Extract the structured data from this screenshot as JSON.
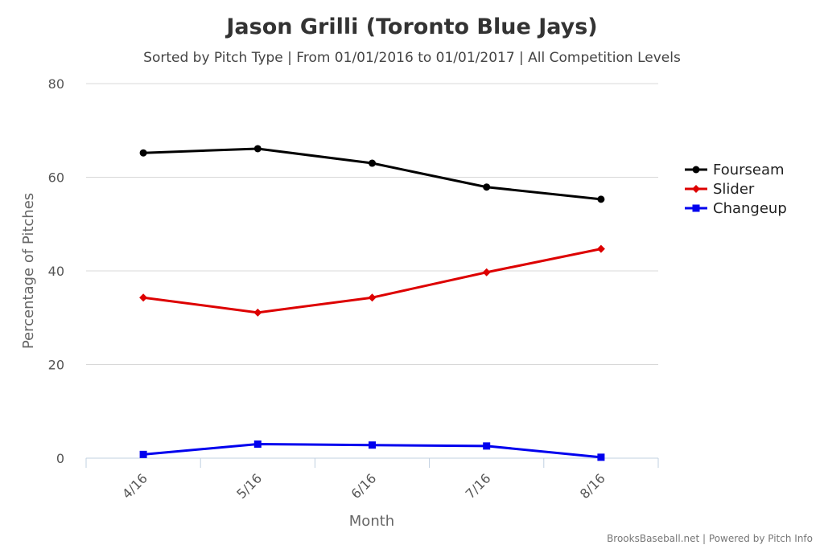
{
  "chart_data": {
    "type": "line",
    "title": "Jason Grilli (Toronto Blue Jays)",
    "subtitle": "Sorted by Pitch Type | From 01/01/2016 to 01/01/2017 | All Competition Levels",
    "xlabel": "Month",
    "ylabel": "Percentage of Pitches",
    "categories": [
      "4/16",
      "5/16",
      "6/16",
      "7/16",
      "8/16"
    ],
    "ylim": [
      0,
      80
    ],
    "yticks": [
      0,
      20,
      40,
      60,
      80
    ],
    "grid": true,
    "legend_position": "right",
    "series": [
      {
        "name": "Fourseam",
        "color": "#000000",
        "marker": "circle",
        "values": [
          65.2,
          66.1,
          63.0,
          57.9,
          55.3
        ]
      },
      {
        "name": "Slider",
        "color": "#dd0000",
        "marker": "diamond",
        "values": [
          34.3,
          31.1,
          34.3,
          39.7,
          44.7
        ]
      },
      {
        "name": "Changeup",
        "color": "#0000ee",
        "marker": "square",
        "values": [
          0.8,
          3.0,
          2.8,
          2.6,
          0.2
        ]
      }
    ]
  },
  "credits": "BrooksBaseball.net | Powered by Pitch Info"
}
